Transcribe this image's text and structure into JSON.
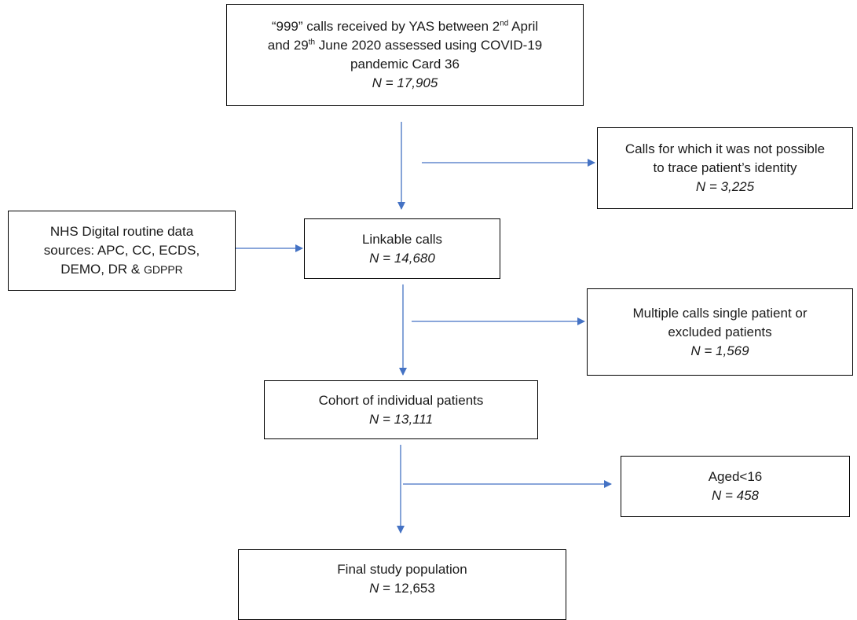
{
  "boxes": {
    "top": {
      "text_a": "“999” calls received by YAS between 2",
      "sup_a": "nd",
      "text_b": " April",
      "text_c": "and 29",
      "sup_c": "th",
      "text_d": " June 2020 assessed using COVID-19",
      "text_e": "pandemic Card 36",
      "n": "N = 17,905"
    },
    "untraceable": {
      "line1": "Calls for which it was not possible",
      "line2": "to trace patient’s identity",
      "n": "N = 3,225"
    },
    "sources": {
      "line1": "NHS Digital routine data",
      "line2": "sources: APC, CC, ECDS,",
      "line3a": "DEMO, DR & ",
      "line3b": "GDPPR"
    },
    "linkable": {
      "title": "Linkable calls",
      "n": "N = 14,680"
    },
    "multiple": {
      "line1": "Multiple calls single patient or",
      "line2": "excluded patients",
      "n": "N = 1,569"
    },
    "cohort": {
      "title": "Cohort of individual patients",
      "n": "N = 13,111"
    },
    "aged": {
      "title": "Aged<16",
      "n": "N = 458"
    },
    "final": {
      "title": "Final study population",
      "n_label": "N",
      "n_value": " = 12,653"
    }
  },
  "colors": {
    "arrow": "#4472C4",
    "border": "#000000"
  }
}
